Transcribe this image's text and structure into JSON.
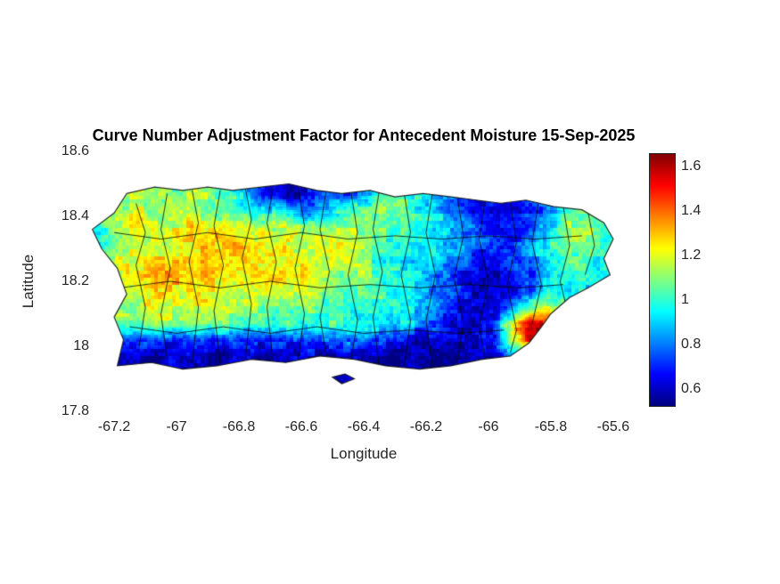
{
  "colors": {
    "text": "#262626",
    "title": "#000000",
    "boundary_lines": "#141414"
  },
  "chart_data": {
    "type": "heatmap",
    "title": "Curve Number Adjustment Factor for Antecedent Moisture 15-Sep-2025",
    "xlabel": "Longitude",
    "ylabel": "Latitude",
    "x_ticks": [
      -67.2,
      -67,
      -66.8,
      -66.6,
      -66.4,
      -66.2,
      -66,
      -65.8,
      -65.6
    ],
    "x_tick_labels": [
      "-67.2",
      "-67",
      "-66.8",
      "-66.6",
      "-66.4",
      "-66.2",
      "-66",
      "-65.8",
      "-65.6"
    ],
    "y_ticks": [
      17.8,
      18,
      18.2,
      18.4,
      18.6
    ],
    "y_tick_labels": [
      "17.8",
      "18",
      "18.2",
      "18.4",
      "18.6"
    ],
    "xlim": [
      -67.266,
      -65.534
    ],
    "ylim": [
      17.8,
      18.6
    ],
    "grid_lines": "off",
    "colorbar": {
      "position": "right",
      "colormap": "jet",
      "clim": [
        0.53,
        1.66
      ],
      "ticks": [
        0.6,
        0.8,
        1,
        1.2,
        1.4,
        1.6
      ],
      "tick_labels": [
        "0.6",
        "0.8",
        "1",
        "1.2",
        "1.4",
        "1.6"
      ]
    },
    "map": {
      "island_outline": [
        [
          -67.16,
          18.47
        ],
        [
          -67.07,
          18.49
        ],
        [
          -66.98,
          18.48
        ],
        [
          -66.9,
          18.49
        ],
        [
          -66.82,
          18.48
        ],
        [
          -66.73,
          18.49
        ],
        [
          -66.64,
          18.5
        ],
        [
          -66.55,
          18.48
        ],
        [
          -66.47,
          18.47
        ],
        [
          -66.38,
          18.48
        ],
        [
          -66.3,
          18.46
        ],
        [
          -66.21,
          18.47
        ],
        [
          -66.12,
          18.46
        ],
        [
          -66.04,
          18.45
        ],
        [
          -65.96,
          18.44
        ],
        [
          -65.88,
          18.45
        ],
        [
          -65.79,
          18.43
        ],
        [
          -65.7,
          18.42
        ],
        [
          -65.63,
          18.38
        ],
        [
          -65.6,
          18.33
        ],
        [
          -65.63,
          18.27
        ],
        [
          -65.61,
          18.22
        ],
        [
          -65.68,
          18.18
        ],
        [
          -65.74,
          18.15
        ],
        [
          -65.8,
          18.1
        ],
        [
          -65.83,
          18.06
        ],
        [
          -65.87,
          18.01
        ],
        [
          -65.93,
          17.97
        ],
        [
          -66.02,
          17.96
        ],
        [
          -66.12,
          17.94
        ],
        [
          -66.22,
          17.93
        ],
        [
          -66.33,
          17.94
        ],
        [
          -66.43,
          17.96
        ],
        [
          -66.54,
          17.97
        ],
        [
          -66.65,
          17.95
        ],
        [
          -66.76,
          17.96
        ],
        [
          -66.87,
          17.94
        ],
        [
          -66.98,
          17.93
        ],
        [
          -67.08,
          17.95
        ],
        [
          -67.19,
          17.94
        ],
        [
          -67.17,
          18.02
        ],
        [
          -67.2,
          18.09
        ],
        [
          -67.16,
          18.16
        ],
        [
          -67.19,
          18.24
        ],
        [
          -67.24,
          18.3
        ],
        [
          -67.27,
          18.36
        ],
        [
          -67.2,
          18.41
        ]
      ],
      "islet_outline": [
        [
          -66.5,
          17.905
        ],
        [
          -66.46,
          17.915
        ],
        [
          -66.43,
          17.9
        ],
        [
          -66.47,
          17.885
        ]
      ],
      "municipality_boundaries": [
        [
          [
            -67.13,
            18.44
          ],
          [
            -67.1,
            18.35
          ],
          [
            -67.13,
            18.25
          ],
          [
            -67.1,
            18.12
          ],
          [
            -67.12,
            18.0
          ]
        ],
        [
          [
            -67.03,
            18.47
          ],
          [
            -67.05,
            18.36
          ],
          [
            -67.02,
            18.24
          ],
          [
            -67.05,
            18.1
          ],
          [
            -67.03,
            17.96
          ]
        ],
        [
          [
            -66.95,
            18.48
          ],
          [
            -66.93,
            18.38
          ],
          [
            -66.96,
            18.26
          ],
          [
            -66.93,
            18.12
          ],
          [
            -66.95,
            17.95
          ]
        ],
        [
          [
            -66.86,
            18.48
          ],
          [
            -66.88,
            18.37
          ],
          [
            -66.85,
            18.25
          ],
          [
            -66.88,
            18.11
          ],
          [
            -66.86,
            17.95
          ]
        ],
        [
          [
            -66.78,
            18.49
          ],
          [
            -66.76,
            18.39
          ],
          [
            -66.79,
            18.27
          ],
          [
            -66.76,
            18.13
          ],
          [
            -66.78,
            17.96
          ]
        ],
        [
          [
            -66.69,
            18.49
          ],
          [
            -66.71,
            18.38
          ],
          [
            -66.68,
            18.26
          ],
          [
            -66.71,
            18.12
          ],
          [
            -66.69,
            17.95
          ]
        ],
        [
          [
            -66.61,
            18.49
          ],
          [
            -66.59,
            18.37
          ],
          [
            -66.62,
            18.24
          ],
          [
            -66.59,
            18.1
          ],
          [
            -66.61,
            17.96
          ]
        ],
        [
          [
            -66.52,
            18.48
          ],
          [
            -66.54,
            18.36
          ],
          [
            -66.51,
            18.23
          ],
          [
            -66.54,
            18.09
          ],
          [
            -66.52,
            17.97
          ]
        ],
        [
          [
            -66.44,
            18.47
          ],
          [
            -66.42,
            18.35
          ],
          [
            -66.45,
            18.22
          ],
          [
            -66.42,
            18.08
          ],
          [
            -66.44,
            17.96
          ]
        ],
        [
          [
            -66.35,
            18.48
          ],
          [
            -66.37,
            18.36
          ],
          [
            -66.34,
            18.23
          ],
          [
            -66.37,
            18.09
          ],
          [
            -66.35,
            17.94
          ]
        ],
        [
          [
            -66.27,
            18.47
          ],
          [
            -66.25,
            18.35
          ],
          [
            -66.28,
            18.22
          ],
          [
            -66.25,
            18.08
          ],
          [
            -66.27,
            17.94
          ]
        ],
        [
          [
            -66.18,
            18.47
          ],
          [
            -66.2,
            18.35
          ],
          [
            -66.17,
            18.22
          ],
          [
            -66.2,
            18.08
          ],
          [
            -66.18,
            17.94
          ]
        ],
        [
          [
            -66.1,
            18.46
          ],
          [
            -66.08,
            18.34
          ],
          [
            -66.11,
            18.21
          ],
          [
            -66.08,
            18.07
          ],
          [
            -66.1,
            17.95
          ]
        ],
        [
          [
            -66.01,
            18.45
          ],
          [
            -66.03,
            18.33
          ],
          [
            -66.0,
            18.2
          ],
          [
            -66.03,
            18.06
          ],
          [
            -66.01,
            17.96
          ]
        ],
        [
          [
            -65.93,
            18.44
          ],
          [
            -65.91,
            18.32
          ],
          [
            -65.94,
            18.19
          ],
          [
            -65.91,
            18.05
          ],
          [
            -65.93,
            17.98
          ]
        ],
        [
          [
            -65.84,
            18.44
          ],
          [
            -65.86,
            18.32
          ],
          [
            -65.83,
            18.19
          ],
          [
            -65.86,
            18.07
          ]
        ],
        [
          [
            -65.76,
            18.43
          ],
          [
            -65.74,
            18.31
          ],
          [
            -65.77,
            18.2
          ],
          [
            -65.75,
            18.12
          ]
        ],
        [
          [
            -65.68,
            18.41
          ],
          [
            -65.66,
            18.31
          ],
          [
            -65.69,
            18.22
          ]
        ],
        [
          [
            -67.2,
            18.35
          ],
          [
            -67.05,
            18.33
          ],
          [
            -66.9,
            18.35
          ],
          [
            -66.75,
            18.33
          ],
          [
            -66.6,
            18.35
          ],
          [
            -66.45,
            18.33
          ],
          [
            -66.3,
            18.34
          ],
          [
            -66.15,
            18.33
          ],
          [
            -66.0,
            18.34
          ],
          [
            -65.85,
            18.33
          ],
          [
            -65.7,
            18.34
          ]
        ],
        [
          [
            -67.18,
            18.18
          ],
          [
            -67.02,
            18.2
          ],
          [
            -66.86,
            18.18
          ],
          [
            -66.7,
            18.2
          ],
          [
            -66.54,
            18.18
          ],
          [
            -66.38,
            18.19
          ],
          [
            -66.22,
            18.18
          ],
          [
            -66.06,
            18.19
          ],
          [
            -65.9,
            18.18
          ],
          [
            -65.76,
            18.19
          ]
        ],
        [
          [
            -67.15,
            18.06
          ],
          [
            -67.0,
            18.04
          ],
          [
            -66.85,
            18.06
          ],
          [
            -66.7,
            18.04
          ],
          [
            -66.55,
            18.06
          ],
          [
            -66.4,
            18.04
          ],
          [
            -66.25,
            18.05
          ],
          [
            -66.1,
            18.04
          ],
          [
            -65.95,
            18.05
          ]
        ]
      ]
    },
    "values_grid": {
      "lon_start": -67.25,
      "lon_step": 0.06,
      "ncols": 28,
      "lat_start": 18.52,
      "lat_step": -0.05,
      "nrows": 12,
      "values": [
        [
          1.0,
          1.05,
          1.1,
          1.05,
          1.0,
          1.05,
          1.0,
          0.9,
          0.8,
          0.7,
          0.65,
          0.7,
          0.8,
          0.7,
          0.75,
          0.9,
          1.0,
          0.95,
          0.9,
          0.8,
          0.75,
          0.8,
          0.85,
          0.9,
          0.95,
          1.0,
          1.0,
          0.95
        ],
        [
          1.05,
          1.1,
          1.15,
          1.1,
          1.1,
          1.15,
          1.1,
          1.0,
          0.85,
          0.7,
          0.6,
          0.65,
          0.75,
          0.7,
          0.8,
          1.0,
          1.05,
          1.0,
          0.9,
          0.75,
          0.7,
          0.75,
          0.7,
          0.8,
          0.9,
          1.0,
          1.05,
          1.0
        ],
        [
          1.1,
          1.15,
          1.2,
          1.15,
          1.2,
          1.15,
          1.1,
          1.05,
          1.0,
          0.95,
          0.9,
          0.8,
          0.85,
          1.0,
          1.1,
          1.15,
          1.1,
          1.0,
          0.9,
          0.8,
          0.7,
          0.65,
          0.6,
          0.7,
          0.8,
          1.0,
          1.1,
          1.05
        ],
        [
          1.0,
          1.15,
          1.2,
          1.2,
          1.2,
          1.25,
          1.2,
          1.2,
          1.15,
          1.15,
          1.2,
          1.15,
          1.1,
          1.15,
          1.15,
          1.1,
          1.05,
          1.0,
          0.95,
          0.85,
          0.8,
          0.7,
          0.65,
          0.75,
          0.9,
          1.1,
          1.15,
          1.05
        ],
        [
          0.95,
          1.1,
          1.15,
          1.2,
          1.2,
          1.25,
          1.3,
          1.3,
          1.25,
          1.2,
          1.2,
          1.15,
          1.15,
          1.2,
          1.15,
          1.05,
          1.0,
          0.95,
          0.9,
          0.85,
          0.8,
          0.75,
          0.7,
          0.85,
          1.0,
          1.1,
          1.1,
          1.0
        ],
        [
          1.05,
          1.15,
          1.2,
          1.25,
          1.25,
          1.3,
          1.3,
          1.3,
          1.3,
          1.25,
          1.25,
          1.2,
          1.2,
          1.15,
          1.1,
          1.0,
          0.95,
          0.95,
          0.9,
          0.8,
          0.7,
          0.65,
          0.7,
          0.8,
          0.95,
          1.05,
          1.05,
          0.95
        ],
        [
          1.1,
          1.2,
          1.25,
          1.3,
          1.3,
          1.3,
          1.3,
          1.25,
          1.25,
          1.3,
          1.25,
          1.25,
          1.15,
          1.1,
          1.1,
          1.05,
          1.0,
          0.95,
          0.85,
          0.75,
          0.65,
          0.6,
          0.65,
          0.75,
          0.9,
          1.0,
          1.0,
          0.95
        ],
        [
          1.1,
          1.15,
          1.2,
          1.25,
          1.25,
          1.25,
          1.25,
          1.2,
          1.2,
          1.2,
          1.2,
          1.15,
          1.1,
          1.05,
          1.05,
          1.0,
          0.95,
          0.9,
          0.8,
          0.7,
          0.6,
          0.6,
          0.65,
          0.8,
          0.95,
          0.95,
          0.9,
          0.9
        ],
        [
          1.05,
          1.1,
          1.15,
          1.2,
          1.2,
          1.2,
          1.2,
          1.15,
          1.1,
          1.1,
          1.1,
          1.1,
          1.05,
          1.0,
          1.0,
          1.0,
          0.95,
          0.9,
          0.8,
          0.7,
          0.6,
          0.65,
          0.8,
          1.1,
          1.25,
          1.1,
          0.9,
          0.85
        ],
        [
          1.0,
          1.05,
          1.05,
          1.1,
          1.1,
          1.1,
          1.1,
          1.05,
          1.0,
          1.0,
          1.05,
          1.0,
          1.0,
          1.0,
          1.0,
          0.95,
          0.9,
          0.85,
          0.75,
          0.65,
          0.6,
          0.7,
          1.2,
          1.6,
          1.55,
          1.2,
          0.8,
          0.8
        ],
        [
          0.8,
          0.8,
          0.75,
          0.75,
          0.7,
          0.75,
          0.7,
          0.75,
          0.7,
          0.75,
          0.7,
          0.7,
          0.75,
          0.8,
          0.8,
          0.7,
          0.65,
          0.6,
          0.6,
          0.6,
          0.6,
          0.65,
          1.1,
          1.5,
          1.35,
          0.9,
          0.7,
          0.75
        ],
        [
          0.65,
          0.6,
          0.6,
          0.55,
          0.6,
          0.6,
          0.55,
          0.6,
          0.6,
          0.55,
          0.6,
          0.6,
          0.55,
          0.6,
          0.6,
          0.55,
          0.55,
          0.6,
          0.55,
          0.55,
          0.6,
          0.6,
          0.8,
          0.9,
          0.8,
          0.7,
          0.65,
          0.7
        ]
      ]
    }
  }
}
